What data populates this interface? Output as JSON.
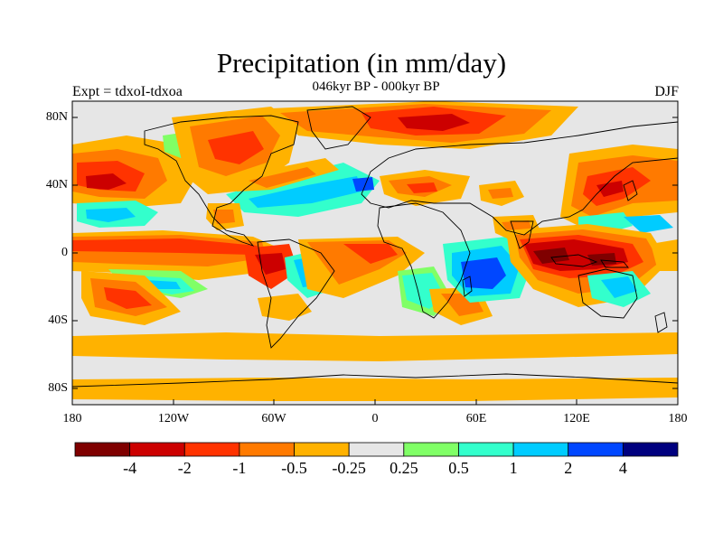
{
  "header": {
    "title": "Precipitation (in mm/day)",
    "subtitle": "046kyr BP - 000kyr BP",
    "left_label": "Expt = tdxoI-tdxoa",
    "right_label": "DJF"
  },
  "axes": {
    "lat_ticks": [
      "80N",
      "40N",
      "0",
      "40S",
      "80S"
    ],
    "lon_ticks": [
      "180",
      "120W",
      "60W",
      "0",
      "60E",
      "120E",
      "180"
    ]
  },
  "colorbar": {
    "colors": [
      "#7f0000",
      "#cc0000",
      "#ff3300",
      "#ff7a00",
      "#ffb200",
      "#e6e6e6",
      "#80ff66",
      "#33ffcc",
      "#00ccff",
      "#0047ff",
      "#00007f"
    ],
    "labels": [
      "-4",
      "-2",
      "-1",
      "-0.5",
      "-0.25",
      "0.25",
      "0.5",
      "1",
      "2",
      "4"
    ]
  },
  "colors": {
    "no_change": "#e6e6e6",
    "coastline": "#000000"
  }
}
